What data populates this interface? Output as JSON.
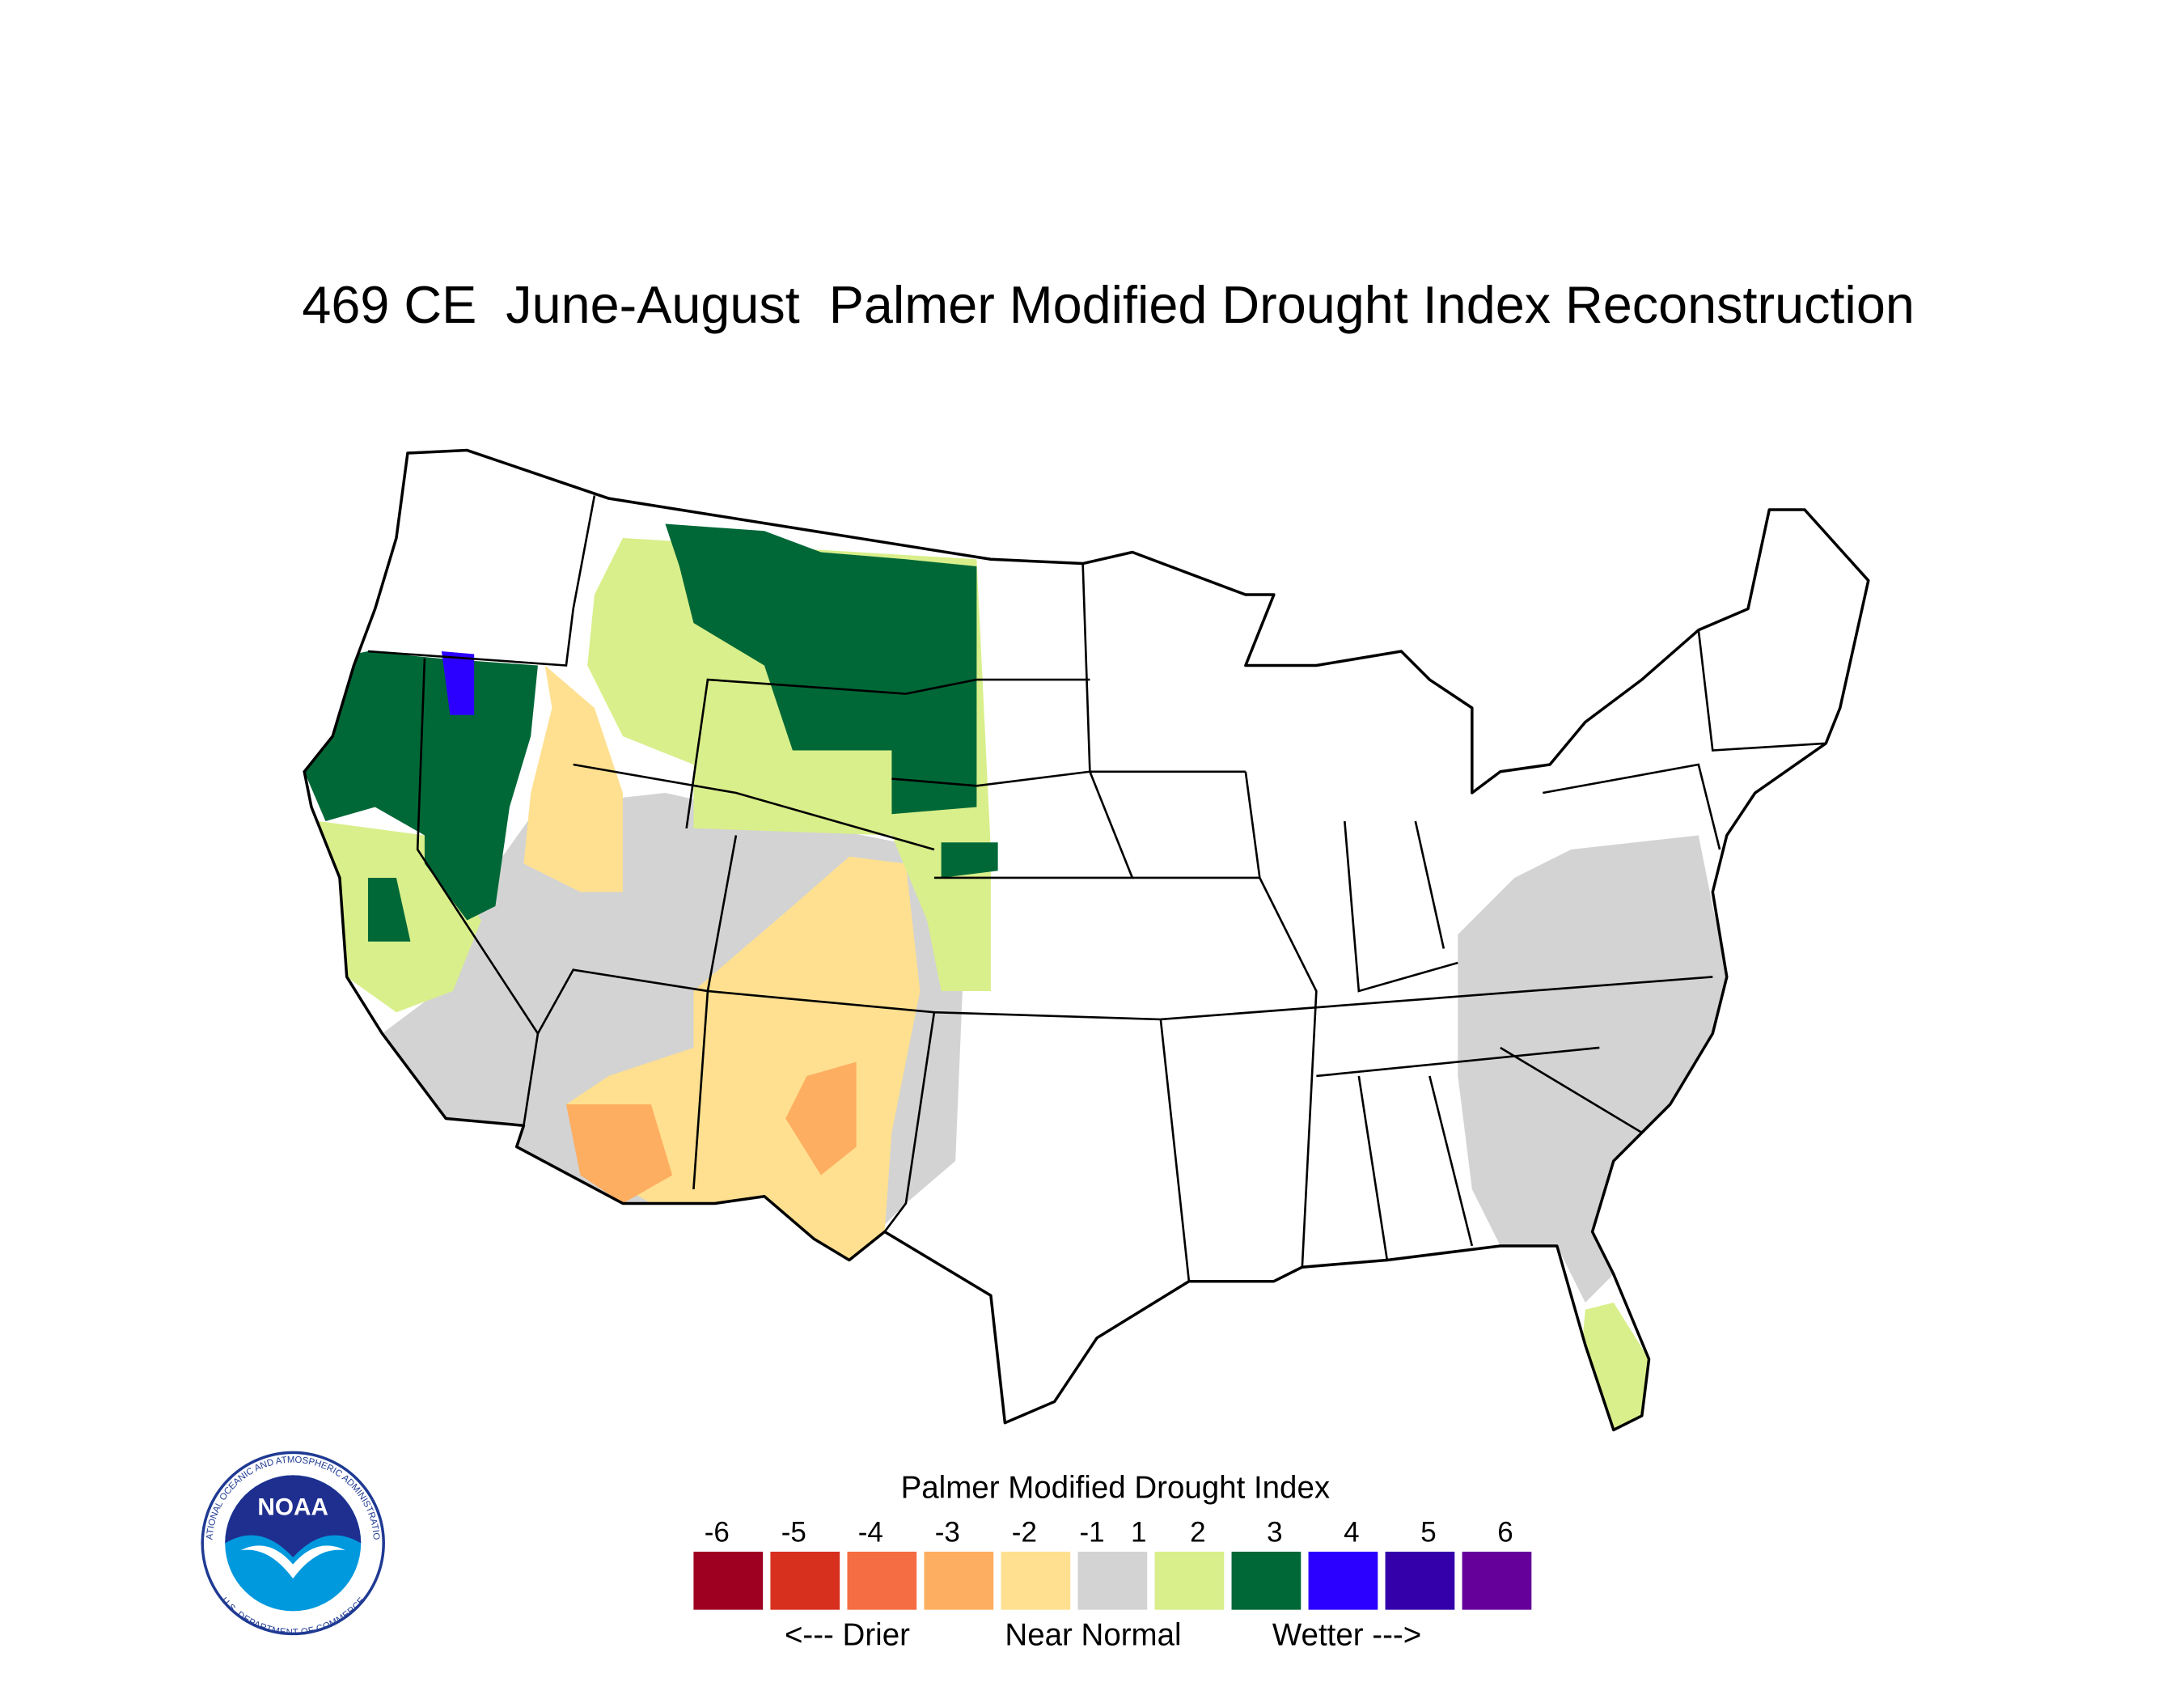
{
  "title": "469 CE  June-August  Palmer Modified Drought Index Reconstruction",
  "legend": {
    "title": "Palmer Modified Drought Index",
    "ticks": [
      -6,
      -5,
      -4,
      -3,
      -2,
      -1,
      1,
      2,
      3,
      4,
      5,
      6
    ],
    "colors": [
      "#9e0022",
      "#d7301f",
      "#f46d43",
      "#fdae61",
      "#fee090",
      "#d3d3d3",
      "#d9ef8b",
      "#006837",
      "#2b00ff",
      "#3300aa",
      "#66009a"
    ],
    "labels": [
      "<--- Drier",
      "Near Normal",
      "Wetter --->"
    ]
  },
  "logo": {
    "name": "NOAA",
    "ring_top": "NATIONAL OCEANIC AND ATMOSPHERIC ADMINISTRATION",
    "ring_bottom": "U.S. DEPARTMENT OF COMMERCE"
  }
}
